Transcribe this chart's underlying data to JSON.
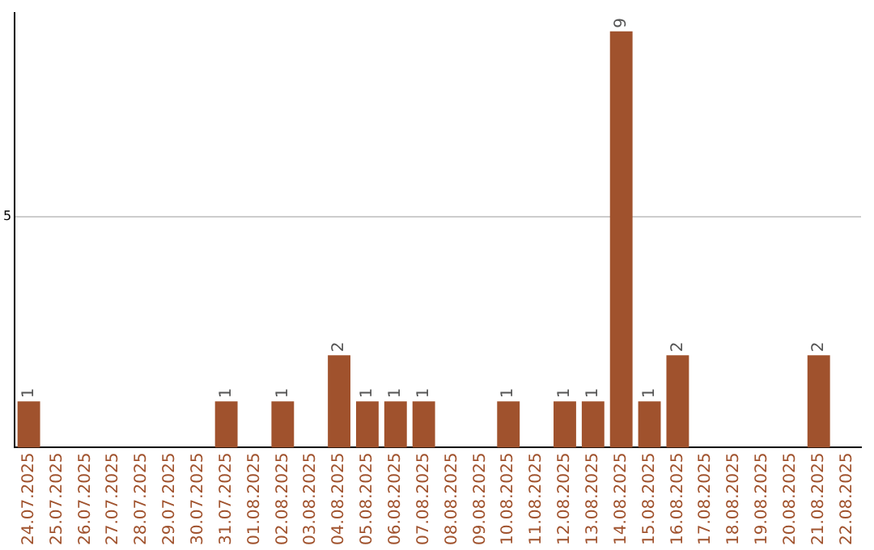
{
  "chart_data": {
    "type": "bar",
    "categories": [
      "24.07.2025",
      "25.07.2025",
      "26.07.2025",
      "27.07.2025",
      "28.07.2025",
      "29.07.2025",
      "30.07.2025",
      "31.07.2025",
      "01.08.2025",
      "02.08.2025",
      "03.08.2025",
      "04.08.2025",
      "05.08.2025",
      "06.08.2025",
      "07.08.2025",
      "08.08.2025",
      "09.08.2025",
      "10.08.2025",
      "11.08.2025",
      "12.08.2025",
      "13.08.2025",
      "14.08.2025",
      "15.08.2025",
      "16.08.2025",
      "17.08.2025",
      "18.08.2025",
      "19.08.2025",
      "20.08.2025",
      "21.08.2025",
      "22.08.2025"
    ],
    "values": [
      1,
      0,
      0,
      0,
      0,
      0,
      0,
      1,
      0,
      1,
      0,
      2,
      1,
      1,
      1,
      0,
      0,
      1,
      0,
      1,
      1,
      9,
      1,
      2,
      0,
      0,
      0,
      0,
      2,
      0
    ],
    "value_labels": [
      "1",
      null,
      null,
      null,
      null,
      null,
      null,
      "1",
      null,
      "1",
      null,
      "2",
      "1",
      "1",
      "1",
      null,
      null,
      "1",
      null,
      "1",
      "1",
      "9",
      "1",
      "2",
      null,
      null,
      null,
      null,
      "2",
      null
    ],
    "color": "#a0522d",
    "ylim": [
      0,
      9.4
    ],
    "yticks": [
      5
    ],
    "grid": "y",
    "legend": false
  }
}
